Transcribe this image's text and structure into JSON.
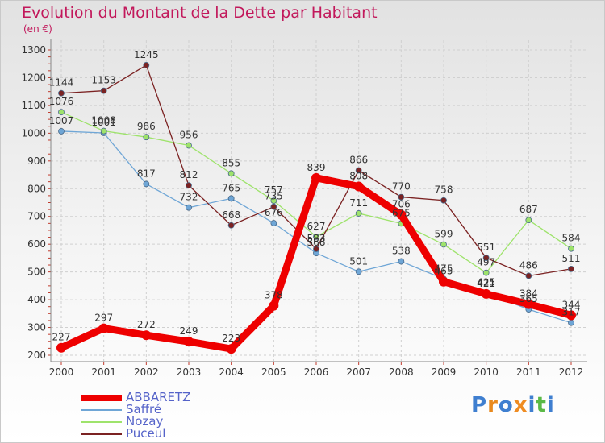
{
  "title": "Evolution du Montant de la Dette par Habitant",
  "subtitle": "(en €)",
  "logo_text": "Proxiti",
  "chart_data": {
    "type": "line",
    "title": "Evolution du Montant de la Dette par Habitant",
    "ylabel": "(en €)",
    "xlabel": "",
    "x": [
      "2000",
      "2001",
      "2002",
      "2003",
      "2004",
      "2005",
      "2006",
      "2007",
      "2008",
      "2009",
      "2010",
      "2011",
      "2012"
    ],
    "ylim": [
      200,
      1300
    ],
    "yticks": [
      200,
      300,
      400,
      500,
      600,
      700,
      800,
      900,
      1000,
      1100,
      1200,
      1300
    ],
    "grid": true,
    "legend_position": "bottom-left",
    "series": [
      {
        "name": "ABBARETZ",
        "color": "#ee0000",
        "values": [
          227,
          297,
          272,
          249,
          223,
          378,
          839,
          808,
          706,
          465,
          421,
          384,
          344
        ]
      },
      {
        "name": "Saffré",
        "color": "#6fa6d6",
        "values": [
          1007,
          1001,
          817,
          732,
          765,
          676,
          568,
          501,
          538,
          475,
          425,
          365,
          317
        ]
      },
      {
        "name": "Nozay",
        "color": "#9ee36b",
        "values": [
          1076,
          1008,
          986,
          956,
          855,
          757,
          627,
          711,
          675,
          599,
          497,
          687,
          584
        ]
      },
      {
        "name": "Puceul",
        "color": "#7b2222",
        "values": [
          1144,
          1153,
          1245,
          812,
          668,
          735,
          583,
          866,
          770,
          758,
          551,
          486,
          511
        ]
      }
    ]
  }
}
